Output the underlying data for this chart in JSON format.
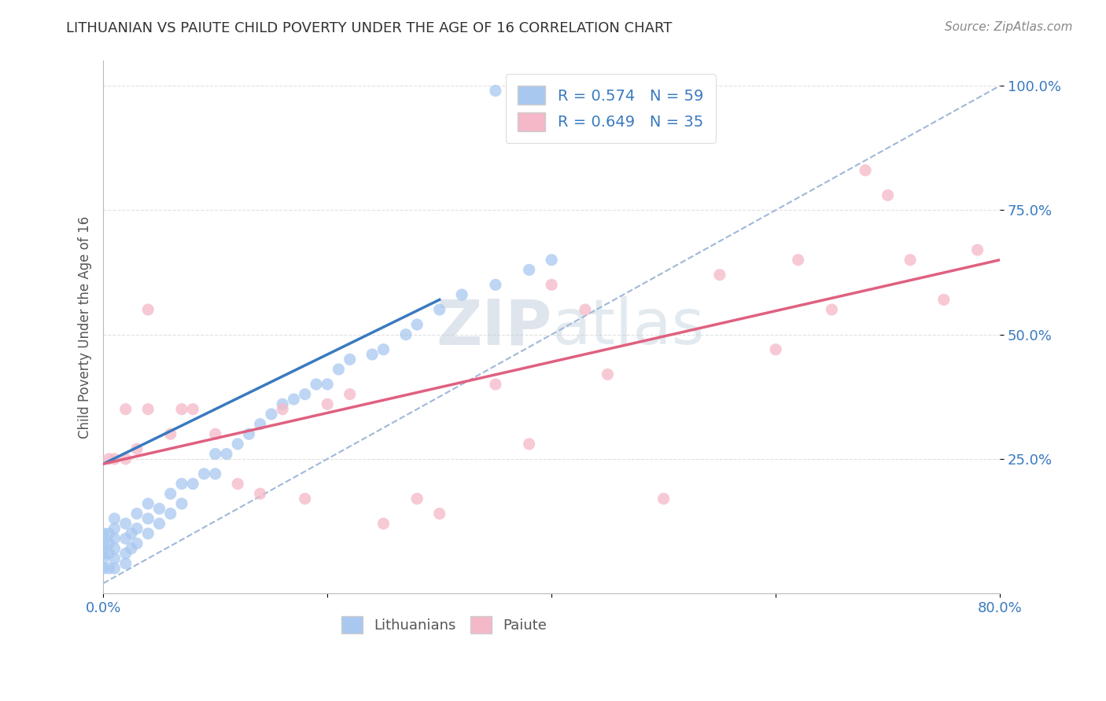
{
  "title": "LITHUANIAN VS PAIUTE CHILD POVERTY UNDER THE AGE OF 16 CORRELATION CHART",
  "source": "Source: ZipAtlas.com",
  "ylabel": "Child Poverty Under the Age of 16",
  "xlim": [
    0.0,
    0.8
  ],
  "ylim": [
    -0.02,
    1.05
  ],
  "xticks": [
    0.0,
    0.2,
    0.4,
    0.6,
    0.8
  ],
  "xticklabels": [
    "0.0%",
    "",
    "",
    "",
    "80.0%"
  ],
  "yticks": [
    0.25,
    0.5,
    0.75,
    1.0
  ],
  "yticklabels": [
    "25.0%",
    "50.0%",
    "75.0%",
    "100.0%"
  ],
  "R_blue": 0.574,
  "N_blue": 59,
  "R_pink": 0.649,
  "N_pink": 35,
  "blue_color": "#A8C8F0",
  "pink_color": "#F5B8C8",
  "blue_line_color": "#3A7ABF",
  "pink_line_color": "#E06080",
  "diag_color": "#A0B8D8",
  "watermark_zip": "ZIP",
  "watermark_atlas": "atlas",
  "watermark_color": "#C8D8E8",
  "watermark_atlas_color": "#B0C4D8",
  "legend_blue_label": "R = 0.574   N = 59",
  "legend_pink_label": "R = 0.649   N = 35",
  "lithuanians_label": "Lithuanians",
  "paiute_label": "Paiute",
  "blue_line_x0": 0.0,
  "blue_line_y0": 0.24,
  "blue_line_x1": 0.3,
  "blue_line_y1": 0.57,
  "pink_line_x0": 0.0,
  "pink_line_y0": 0.24,
  "pink_line_x1": 0.8,
  "pink_line_y1": 0.65,
  "blue_x": [
    0.0,
    0.0,
    0.0,
    0.0,
    0.0,
    0.005,
    0.005,
    0.005,
    0.005,
    0.01,
    0.01,
    0.01,
    0.01,
    0.01,
    0.01,
    0.02,
    0.02,
    0.02,
    0.02,
    0.025,
    0.025,
    0.03,
    0.03,
    0.03,
    0.04,
    0.04,
    0.04,
    0.05,
    0.05,
    0.06,
    0.06,
    0.07,
    0.07,
    0.08,
    0.09,
    0.1,
    0.1,
    0.11,
    0.12,
    0.13,
    0.14,
    0.15,
    0.16,
    0.17,
    0.18,
    0.19,
    0.2,
    0.21,
    0.22,
    0.24,
    0.25,
    0.27,
    0.28,
    0.3,
    0.32,
    0.35,
    0.38,
    0.4,
    0.35
  ],
  "blue_y": [
    0.03,
    0.05,
    0.06,
    0.08,
    0.1,
    0.03,
    0.06,
    0.08,
    0.1,
    0.03,
    0.05,
    0.07,
    0.09,
    0.11,
    0.13,
    0.04,
    0.06,
    0.09,
    0.12,
    0.07,
    0.1,
    0.08,
    0.11,
    0.14,
    0.1,
    0.13,
    0.16,
    0.12,
    0.15,
    0.14,
    0.18,
    0.16,
    0.2,
    0.2,
    0.22,
    0.22,
    0.26,
    0.26,
    0.28,
    0.3,
    0.32,
    0.34,
    0.36,
    0.37,
    0.38,
    0.4,
    0.4,
    0.43,
    0.45,
    0.46,
    0.47,
    0.5,
    0.52,
    0.55,
    0.58,
    0.6,
    0.63,
    0.65,
    0.99
  ],
  "pink_x": [
    0.005,
    0.01,
    0.02,
    0.02,
    0.03,
    0.04,
    0.04,
    0.06,
    0.07,
    0.08,
    0.1,
    0.12,
    0.14,
    0.16,
    0.18,
    0.2,
    0.22,
    0.25,
    0.28,
    0.3,
    0.35,
    0.38,
    0.4,
    0.43,
    0.45,
    0.5,
    0.55,
    0.6,
    0.62,
    0.65,
    0.68,
    0.7,
    0.72,
    0.75,
    0.78
  ],
  "pink_y": [
    0.25,
    0.25,
    0.25,
    0.35,
    0.27,
    0.55,
    0.35,
    0.3,
    0.35,
    0.35,
    0.3,
    0.2,
    0.18,
    0.35,
    0.17,
    0.36,
    0.38,
    0.12,
    0.17,
    0.14,
    0.4,
    0.28,
    0.6,
    0.55,
    0.42,
    0.17,
    0.62,
    0.47,
    0.65,
    0.55,
    0.83,
    0.78,
    0.65,
    0.57,
    0.67
  ]
}
